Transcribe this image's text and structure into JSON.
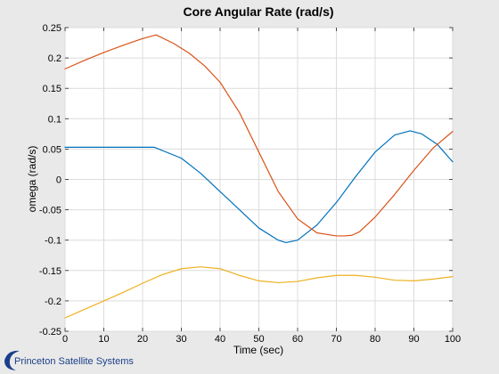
{
  "chart_data": {
    "type": "line",
    "title": "Core Angular Rate (rad/s)",
    "xlabel": "Time (sec)",
    "ylabel": "omega (rad/s)",
    "xlim": [
      0,
      100
    ],
    "ylim": [
      -0.25,
      0.25
    ],
    "xticks": [
      "0",
      "10",
      "20",
      "30",
      "40",
      "50",
      "60",
      "70",
      "80",
      "90",
      "100"
    ],
    "yticks": [
      "0.25",
      "0.2",
      "0.15",
      "0.1",
      "0.05",
      "0",
      "-0.05",
      "-0.1",
      "-0.15",
      "-0.2",
      "-0.25"
    ],
    "grid": true,
    "series": [
      {
        "color": "#0072bd",
        "x": [
          0,
          10,
          20,
          23,
          30,
          35,
          40,
          45,
          50,
          55,
          57,
          60,
          65,
          70,
          75,
          80,
          85,
          89,
          92,
          96,
          100
        ],
        "y": [
          0.053,
          0.053,
          0.053,
          0.053,
          0.035,
          0.01,
          -0.02,
          -0.05,
          -0.08,
          -0.1,
          -0.104,
          -0.1,
          -0.075,
          -0.038,
          0.005,
          0.045,
          0.073,
          0.08,
          0.075,
          0.058,
          0.029
        ]
      },
      {
        "color": "#d95319",
        "x": [
          0,
          5,
          10,
          15,
          20,
          23.5,
          28,
          32,
          36,
          40,
          45,
          50,
          55,
          60,
          65,
          70,
          72,
          74,
          76,
          80,
          85,
          90,
          95,
          100
        ],
        "y": [
          0.182,
          0.196,
          0.209,
          0.221,
          0.232,
          0.238,
          0.224,
          0.208,
          0.187,
          0.16,
          0.11,
          0.045,
          -0.02,
          -0.065,
          -0.088,
          -0.093,
          -0.093,
          -0.092,
          -0.086,
          -0.062,
          -0.025,
          0.015,
          0.052,
          0.079
        ]
      },
      {
        "color": "#edb120",
        "x": [
          0,
          5,
          10,
          15,
          20,
          25,
          30,
          35,
          40,
          45,
          50,
          55,
          60,
          65,
          70,
          75,
          80,
          85,
          90,
          95,
          100
        ],
        "y": [
          -0.228,
          -0.214,
          -0.2,
          -0.186,
          -0.171,
          -0.157,
          -0.147,
          -0.144,
          -0.147,
          -0.158,
          -0.167,
          -0.17,
          -0.168,
          -0.162,
          -0.158,
          -0.158,
          -0.161,
          -0.166,
          -0.167,
          -0.164,
          -0.16
        ]
      }
    ]
  },
  "footer": {
    "logo_text": "Princeton Satellite Systems"
  }
}
